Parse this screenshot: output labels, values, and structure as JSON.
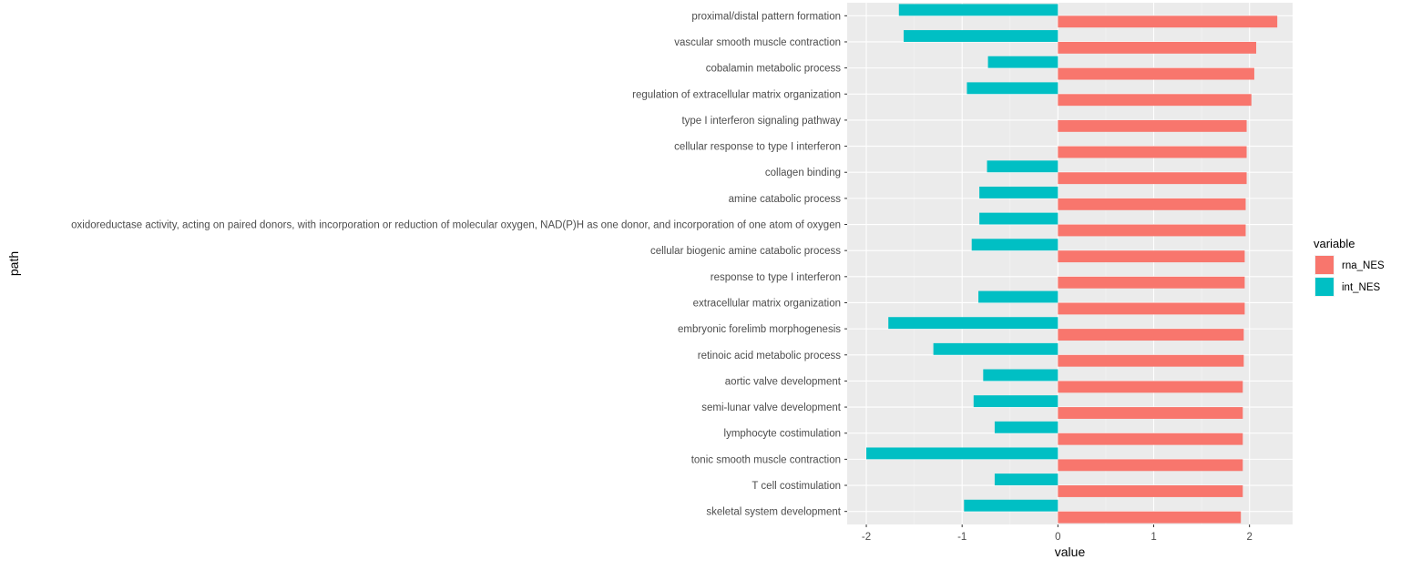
{
  "chart_data": {
    "type": "bar",
    "orientation": "horizontal",
    "xlabel": "value",
    "ylabel": "path",
    "xlim": [
      -2.2,
      2.45
    ],
    "xticks": [
      -2,
      -1,
      0,
      1,
      2
    ],
    "grid": true,
    "legend_position": "right",
    "legend_title": "variable",
    "categories": [
      "proximal/distal pattern formation",
      "vascular smooth muscle contraction",
      "cobalamin metabolic process",
      "regulation of extracellular matrix organization",
      "type I interferon signaling pathway",
      "cellular response to type I interferon",
      "collagen binding",
      "amine catabolic process",
      "oxidoreductase activity, acting on paired donors, with incorporation or reduction of molecular oxygen, NAD(P)H as one donor, and incorporation of one atom of oxygen",
      "cellular biogenic amine catabolic process",
      "response to type I interferon",
      "extracellular matrix organization",
      "embryonic forelimb morphogenesis",
      "retinoic acid metabolic process",
      "aortic valve development",
      "semi-lunar valve development",
      "lymphocyte costimulation",
      "tonic smooth muscle contraction",
      "T cell costimulation",
      "skeletal system development"
    ],
    "series": [
      {
        "name": "rna_NES",
        "color": "#F8766D",
        "values": [
          2.29,
          2.07,
          2.05,
          2.02,
          1.97,
          1.97,
          1.97,
          1.96,
          1.96,
          1.95,
          1.95,
          1.95,
          1.94,
          1.94,
          1.93,
          1.93,
          1.93,
          1.93,
          1.93,
          1.91
        ]
      },
      {
        "name": "int_NES",
        "color": "#00BFC4",
        "values": [
          -1.66,
          -1.61,
          -0.73,
          -0.95,
          0,
          0,
          -0.74,
          -0.82,
          -0.82,
          -0.9,
          0,
          -0.83,
          -1.77,
          -1.3,
          -0.78,
          -0.88,
          -0.66,
          -2.0,
          -0.66,
          -0.98
        ]
      }
    ]
  }
}
